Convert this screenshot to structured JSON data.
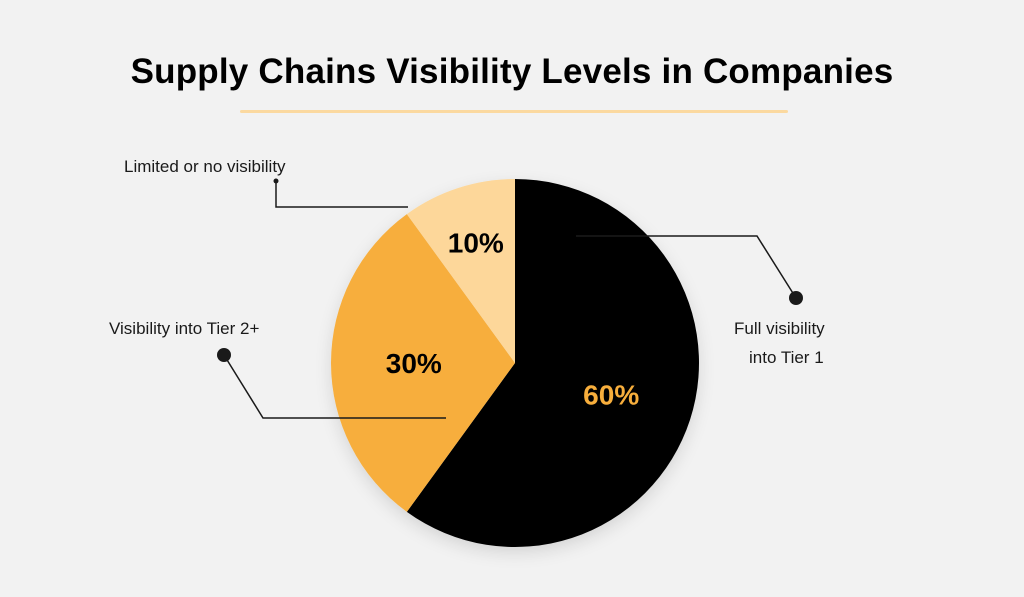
{
  "chart_data": {
    "type": "pie",
    "title": "Supply Chains Visibility Levels in Companies",
    "slices": [
      {
        "label": "Full visibility into Tier 1",
        "value": 60,
        "value_label": "60%",
        "color": "#000000",
        "label_color": "#f7ae3c"
      },
      {
        "label": "Visibility into Tier 2+",
        "value": 30,
        "value_label": "30%",
        "color": "#f7ae3c",
        "label_color": "#000000"
      },
      {
        "label": "Limited or no visibility",
        "value": 10,
        "value_label": "10%",
        "color": "#fdd79a",
        "label_color": "#000000"
      }
    ]
  },
  "colors": {
    "background": "#f2f2f2",
    "title_rule": "#fbd9a0",
    "callout": "#1a1a1a"
  }
}
